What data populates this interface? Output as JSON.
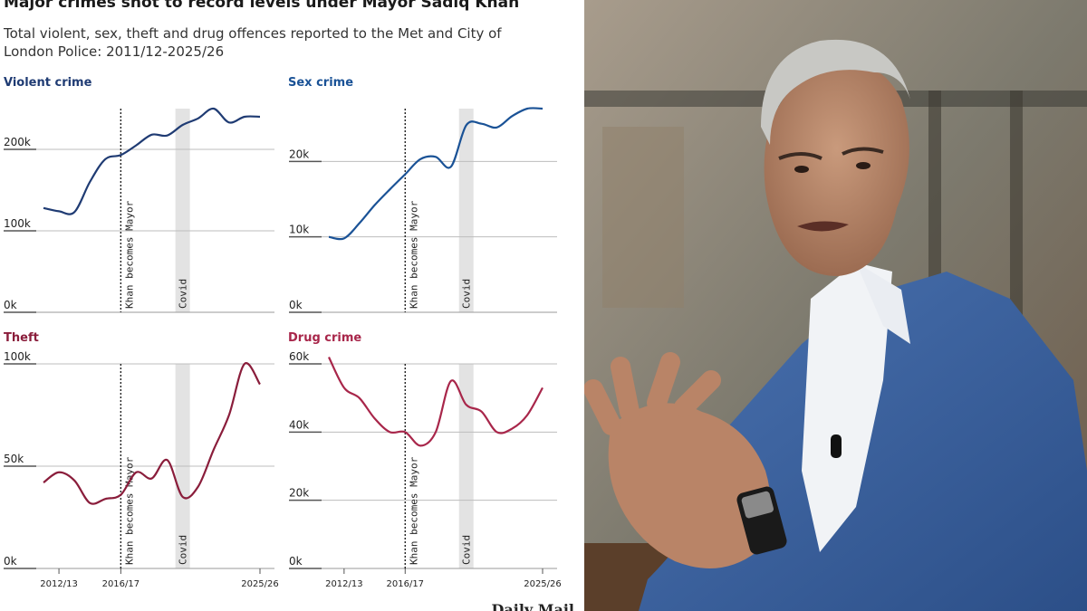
{
  "headline": "Major crimes shot to record levels under Mayor Sadiq Khan",
  "subtitle": "Total violent, sex, theft and drug offences reported to the Met and City of London Police: 2011/12-2025/26",
  "annotations": {
    "khan_label": "Khan becomes Mayor",
    "covid_label": "Covid"
  },
  "x_tick_labels": [
    "2012/13",
    "2016/17",
    "2025/26"
  ],
  "source_logo": "Daily Mail",
  "colors": {
    "violent": "#1f3b73",
    "sex": "#1a5296",
    "theft": "#8a1d3b",
    "drug": "#a8264a",
    "covid_band": "#e3e3e3"
  },
  "chart_data": [
    {
      "type": "line",
      "title": "Violent crime",
      "x": [
        "2011/12",
        "2012/13",
        "2013/14",
        "2014/15",
        "2015/16",
        "2016/17",
        "2017/18",
        "2018/19",
        "2019/20",
        "2020/21",
        "2021/22",
        "2022/23",
        "2023/24",
        "2024/25",
        "2025/26"
      ],
      "values": [
        128000,
        124000,
        123000,
        160000,
        188000,
        193000,
        205000,
        218000,
        217000,
        230000,
        238000,
        250000,
        233000,
        240000,
        240000
      ],
      "ylim": [
        0,
        250000
      ],
      "y_ticks": [
        0,
        100000,
        200000
      ],
      "y_tick_labels": [
        "0k",
        "100k",
        "200k"
      ],
      "khan_x": "2016/17",
      "covid_x": "2020/21"
    },
    {
      "type": "line",
      "title": "Sex crime",
      "x": [
        "2011/12",
        "2012/13",
        "2013/14",
        "2014/15",
        "2015/16",
        "2016/17",
        "2017/18",
        "2018/19",
        "2019/20",
        "2020/21",
        "2021/22",
        "2022/23",
        "2023/24",
        "2024/25",
        "2025/26"
      ],
      "values": [
        10000,
        9800,
        11800,
        14200,
        16300,
        18300,
        20300,
        20600,
        19300,
        24800,
        25000,
        24500,
        26000,
        27000,
        27000
      ],
      "ylim": [
        0,
        27000
      ],
      "y_ticks": [
        0,
        10000,
        20000
      ],
      "y_tick_labels": [
        "0k",
        "10k",
        "20k"
      ],
      "khan_x": "2016/17",
      "covid_x": "2020/21"
    },
    {
      "type": "line",
      "title": "Theft",
      "x": [
        "2011/12",
        "2012/13",
        "2013/14",
        "2014/15",
        "2015/16",
        "2016/17",
        "2017/18",
        "2018/19",
        "2019/20",
        "2020/21",
        "2021/22",
        "2022/23",
        "2023/24",
        "2024/25",
        "2025/26"
      ],
      "values": [
        42000,
        47000,
        43000,
        32000,
        34000,
        36000,
        47000,
        44000,
        53000,
        35000,
        40000,
        58000,
        75000,
        100000,
        90000
      ],
      "ylim": [
        0,
        100000
      ],
      "y_ticks": [
        0,
        50000,
        100000
      ],
      "y_tick_labels": [
        "0k",
        "50k",
        "100k"
      ],
      "khan_x": "2016/17",
      "covid_x": "2020/21"
    },
    {
      "type": "line",
      "title": "Drug crime",
      "x": [
        "2011/12",
        "2012/13",
        "2013/14",
        "2014/15",
        "2015/16",
        "2016/17",
        "2017/18",
        "2018/19",
        "2019/20",
        "2020/21",
        "2021/22",
        "2022/23",
        "2023/24",
        "2024/25",
        "2025/26"
      ],
      "values": [
        62000,
        53000,
        50000,
        44000,
        40000,
        40000,
        36000,
        40000,
        55000,
        48000,
        46000,
        40000,
        41000,
        45000,
        53000
      ],
      "ylim": [
        0,
        60000
      ],
      "y_ticks": [
        0,
        20000,
        40000,
        60000
      ],
      "y_tick_labels": [
        "0k",
        "20k",
        "40k",
        "60k"
      ],
      "khan_x": "2016/17",
      "covid_x": "2020/21"
    }
  ]
}
